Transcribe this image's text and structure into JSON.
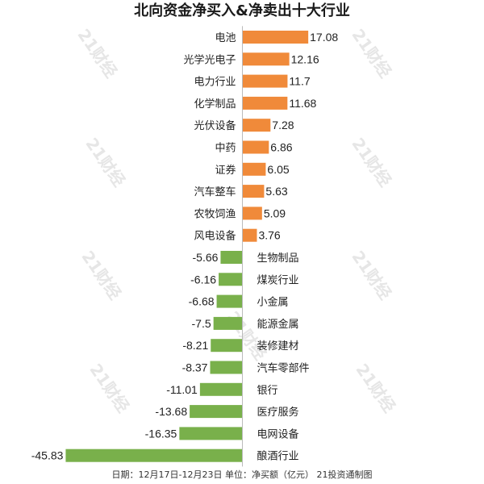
{
  "colors": {
    "positive": "#F08A3A",
    "negative": "#79B04B",
    "axis": "#bbbbbb"
  },
  "watermark": "21财经",
  "footer": "日期：12月17日-12月23日 单位：净买额（亿元） 21投资通制图",
  "chart_data": {
    "type": "bar",
    "orientation": "horizontal",
    "title": "北向资金净买入&净卖出十大行业",
    "categories": [
      "电池",
      "光学光电子",
      "电力行业",
      "化学制品",
      "光伏设备",
      "中药",
      "证券",
      "汽车整车",
      "农牧饲渔",
      "风电设备",
      "生物制品",
      "煤炭行业",
      "小金属",
      "能源金属",
      "装修建材",
      "汽车零部件",
      "银行",
      "医疗服务",
      "电网设备",
      "酿酒行业"
    ],
    "values": [
      17.08,
      12.16,
      11.7,
      11.68,
      7.28,
      6.86,
      6.05,
      5.63,
      5.09,
      3.76,
      -5.66,
      -6.16,
      -6.68,
      -7.5,
      -8.21,
      -8.37,
      -11.01,
      -13.68,
      -16.35,
      -45.83
    ],
    "value_labels": [
      "17.08",
      "12.16",
      "11.7",
      "11.68",
      "7.28",
      "6.86",
      "6.05",
      "5.63",
      "5.09",
      "3.76",
      "-5.66",
      "-6.16",
      "-6.68",
      "-7.5",
      "-8.21",
      "-8.37",
      "-11.01",
      "-13.68",
      "-16.35",
      "-45.83"
    ],
    "xlabel": "",
    "ylabel": "",
    "grid": false,
    "legend": false
  }
}
